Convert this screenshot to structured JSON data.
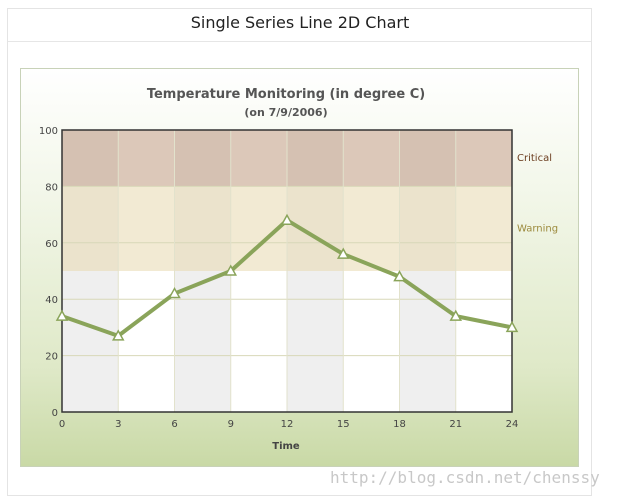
{
  "header": {
    "title": "Single Series Line 2D Chart"
  },
  "watermark": "http://blog.csdn.net/chenssy",
  "chart_data": {
    "type": "line",
    "title": "Temperature Monitoring (in degree C)",
    "subtitle": "(on 7/9/2006)",
    "xlabel": "Time",
    "ylabel": "",
    "x": [
      0,
      3,
      6,
      9,
      12,
      15,
      18,
      21,
      24
    ],
    "series": [
      {
        "values": [
          34,
          27,
          42,
          50,
          68,
          56,
          48,
          34,
          30
        ]
      }
    ],
    "xlim": [
      0,
      24
    ],
    "ylim": [
      0,
      100
    ],
    "yticks": [
      0,
      20,
      40,
      60,
      80,
      100
    ],
    "grid": true,
    "trend_zones": [
      {
        "label": "Critical",
        "from": 80,
        "to": 100,
        "color": "#bf9a80"
      },
      {
        "label": "Warning",
        "from": 50,
        "to": 80,
        "color": "#e7d9ae"
      }
    ],
    "colors": {
      "line": "#8aa45a",
      "marker_fill": "#ffffff",
      "critical_label": "#6b3d1f",
      "warning_label": "#9c8a3d",
      "axis": "#333333"
    }
  }
}
